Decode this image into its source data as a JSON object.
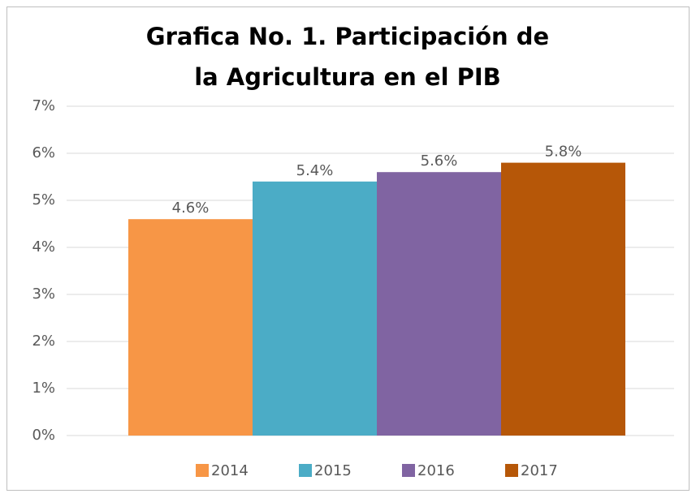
{
  "chart_data": {
    "type": "bar",
    "title": "Grafica No. 1. Participación de la Agricultura en el PIB",
    "categories": [
      null
    ],
    "series": [
      {
        "name": "2014",
        "color": "#f79646",
        "values": [
          4.6
        ],
        "value_labels": [
          "4.6%"
        ]
      },
      {
        "name": "2015",
        "color": "#4bacc6",
        "values": [
          5.4
        ],
        "value_labels": [
          "5.4%"
        ]
      },
      {
        "name": "2016",
        "color": "#8064a2",
        "values": [
          5.6
        ],
        "value_labels": [
          "5.6%"
        ]
      },
      {
        "name": "2017",
        "color": "#b65708",
        "values": [
          5.8
        ],
        "value_labels": [
          "5.8%"
        ]
      }
    ],
    "ylim": [
      0,
      7
    ],
    "yticks": [
      {
        "value": 0,
        "label": "0%"
      },
      {
        "value": 1,
        "label": "1%"
      },
      {
        "value": 2,
        "label": "2%"
      },
      {
        "value": 3,
        "label": "3%"
      },
      {
        "value": 4,
        "label": "4%"
      },
      {
        "value": 5,
        "label": "5%"
      },
      {
        "value": 6,
        "label": "6%"
      },
      {
        "value": 7,
        "label": "7%"
      }
    ],
    "grid": true,
    "legend": "bottom"
  }
}
